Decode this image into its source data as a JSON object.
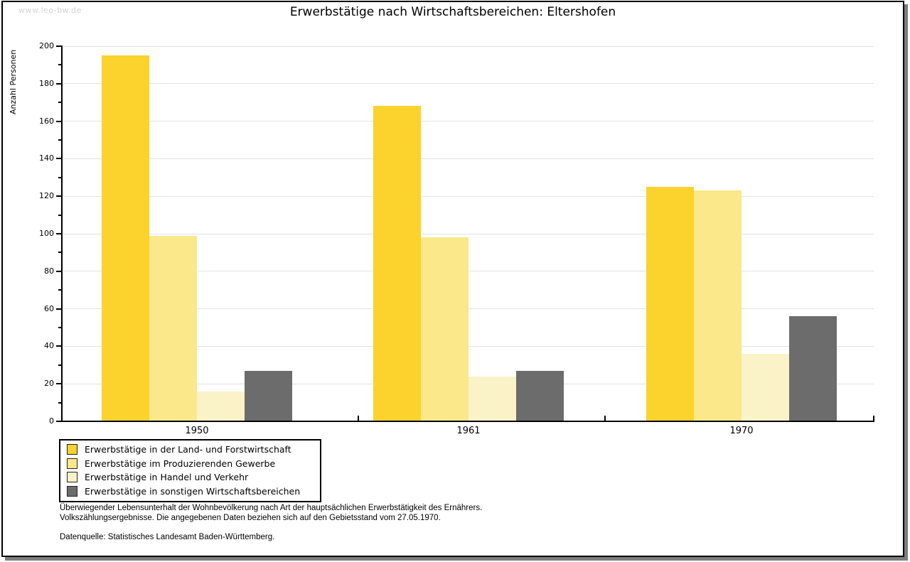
{
  "watermark": "www.leo-bw.de",
  "title": "Erwerbstätige nach Wirtschaftsbereichen: Eltershofen",
  "chart_data": {
    "type": "bar",
    "title": "Erwerbstätige nach Wirtschaftsbereichen: Eltershofen",
    "xlabel": "",
    "ylabel": "Anzahl Personen",
    "ylim": [
      0,
      200
    ],
    "ytick_step": 20,
    "yminor_step": 10,
    "grid": "horizontal major gridlines on",
    "legend_position": "bottom-left box",
    "categories": [
      "1950",
      "1961",
      "1970"
    ],
    "series": [
      {
        "name": "Erwerbstätige in der Land- und Forstwirtschaft",
        "color": "#FCD22D",
        "values": [
          195,
          168,
          125
        ]
      },
      {
        "name": "Erwerbstätige im Produzierenden Gewerbe",
        "color": "#FAE88A",
        "values": [
          99,
          98,
          123
        ]
      },
      {
        "name": "Erwerbstätige in Handel und Verkehr",
        "color": "#FAF3C8",
        "values": [
          16,
          24,
          36
        ]
      },
      {
        "name": "Erwerbstätige in sonstigen Wirtschaftsbereichen",
        "color": "#6C6C6C",
        "values": [
          27,
          27,
          56
        ]
      }
    ]
  },
  "footnotes": {
    "line1": "Überwiegender Lebensunterhalt der Wohnbevölkerung nach Art der hauptsächlichen Erwerbstätigkeit des Ernährers.",
    "line2": "Volkszählungsergebnisse. Die angegebenen Daten beziehen sich auf den Gebietsstand vom 27.05.1970.",
    "source": "Datenquelle: Statistisches Landesamt Baden-Württemberg."
  }
}
